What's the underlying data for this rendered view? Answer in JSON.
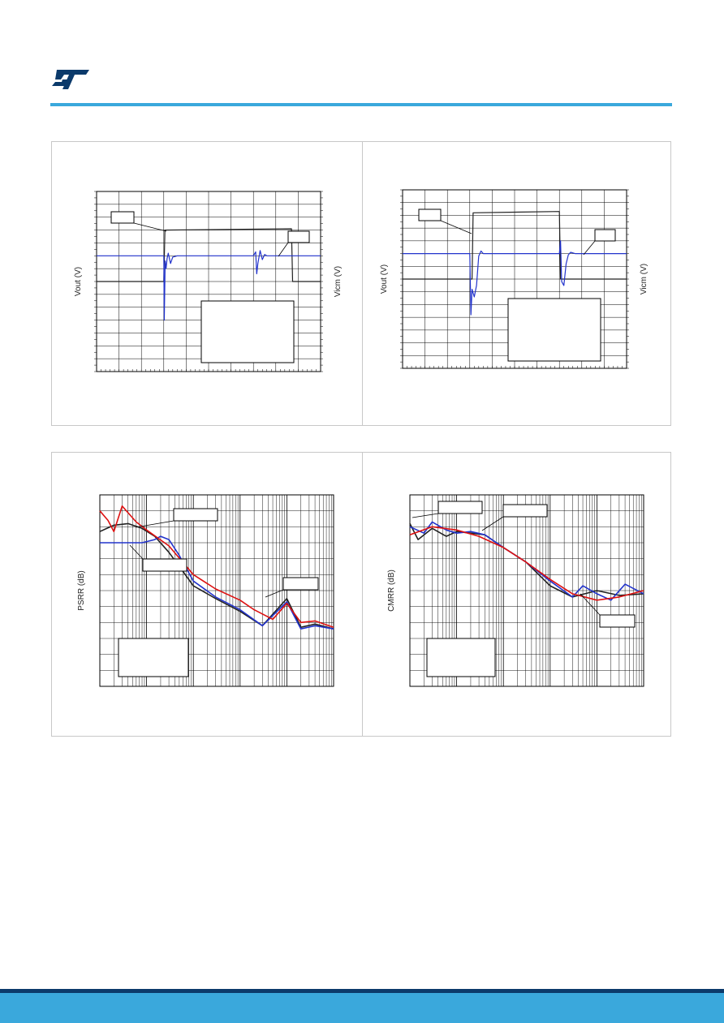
{
  "colors": {
    "brand": "#3aa8dc",
    "footer_dark": "#0b3a6b",
    "panel_border": "#c8c8c8"
  },
  "logo": {
    "icon": "st-logo-icon"
  },
  "chart_data": [
    {
      "id": "c1",
      "type": "line",
      "ylabel": "Vout (V)",
      "y2label": "Vicm (V)",
      "grid": true,
      "xlim": [
        0,
        10
      ],
      "ylim": [
        0,
        14
      ],
      "series": [
        {
          "color": "#222222",
          "x": [
            0,
            3.0,
            3.05,
            8.7,
            8.75,
            10
          ],
          "y": [
            7.0,
            7.0,
            11.0,
            11.1,
            7.0,
            7.0
          ]
        },
        {
          "color": "#2233cc",
          "x": [
            0,
            3.0,
            3.02,
            3.06,
            3.1,
            3.15,
            3.2,
            3.3,
            3.4,
            3.6,
            4.0,
            7.0,
            7.1,
            7.15,
            7.2,
            7.3,
            7.4,
            7.5,
            7.6,
            8.0,
            10
          ],
          "y": [
            9.0,
            9.0,
            4.0,
            8.6,
            8.0,
            8.8,
            9.2,
            8.4,
            8.9,
            9.0,
            9.0,
            9.0,
            9.3,
            7.6,
            8.4,
            9.4,
            8.7,
            9.1,
            9.0,
            9.0,
            9.0
          ]
        }
      ]
    },
    {
      "id": "c2",
      "type": "line",
      "ylabel": "Vout (V)",
      "y2label": "Vicm (V)",
      "grid": true,
      "xlim": [
        0,
        10
      ],
      "ylim": [
        0,
        14
      ],
      "series": [
        {
          "color": "#222222",
          "x": [
            0,
            3.1,
            3.15,
            7.0,
            7.05,
            10
          ],
          "y": [
            7.0,
            7.0,
            12.2,
            12.3,
            7.0,
            7.0
          ]
        },
        {
          "color": "#2233cc",
          "x": [
            0,
            3.0,
            3.05,
            3.1,
            3.2,
            3.3,
            3.4,
            3.5,
            3.6,
            3.7,
            3.9,
            4.2,
            7.0,
            7.05,
            7.1,
            7.2,
            7.3,
            7.4,
            7.5,
            7.7,
            8.0,
            10
          ],
          "y": [
            9.0,
            9.0,
            4.2,
            6.2,
            5.6,
            6.5,
            8.8,
            9.2,
            9.0,
            9.0,
            9.0,
            9.0,
            9.0,
            10.0,
            6.8,
            6.5,
            8.2,
            8.9,
            9.1,
            9.0,
            9.0,
            9.0
          ]
        }
      ]
    },
    {
      "id": "c3",
      "type": "line",
      "ylabel": "PSRR (dB)",
      "grid": true,
      "x_scale": "log",
      "xlim": [
        10,
        1000000
      ],
      "ylim": [
        0,
        120
      ],
      "series": [
        {
          "color": "#222222",
          "x": [
            10,
            20,
            40,
            80,
            150,
            300,
            600,
            1000,
            3000,
            10000,
            30000,
            100000,
            200000,
            400000,
            1000000
          ],
          "y": [
            97,
            101,
            102,
            99,
            94,
            84,
            72,
            63,
            55,
            47,
            38,
            55,
            37,
            39,
            36
          ]
        },
        {
          "color": "#2233cc",
          "x": [
            10,
            30,
            80,
            150,
            200,
            300,
            500,
            1000,
            3000,
            10000,
            30000,
            100000,
            200000,
            400000,
            1000000
          ],
          "y": [
            90,
            90,
            90,
            92,
            94,
            92,
            82,
            66,
            56,
            48,
            38,
            53,
            36,
            38,
            36
          ]
        },
        {
          "color": "#dd1111",
          "x": [
            10,
            15,
            20,
            30,
            60,
            100,
            300,
            1000,
            3000,
            10000,
            20000,
            50000,
            100000,
            200000,
            400000,
            1000000
          ],
          "y": [
            110,
            104,
            97,
            113,
            103,
            98,
            88,
            70,
            61,
            54,
            48,
            42,
            52,
            40,
            41,
            37
          ]
        }
      ]
    },
    {
      "id": "c4",
      "type": "line",
      "ylabel": "CMRR (dB)",
      "grid": true,
      "x_scale": "log",
      "xlim": [
        10,
        1000000
      ],
      "ylim": [
        0,
        120
      ],
      "series": [
        {
          "color": "#222222",
          "x": [
            10,
            15,
            30,
            60,
            100,
            200,
            400,
            1000,
            3000,
            10000,
            30000,
            100000,
            300000,
            1000000
          ],
          "y": [
            102,
            92,
            99,
            94,
            97,
            96,
            95,
            87,
            78,
            63,
            56,
            60,
            57,
            58
          ]
        },
        {
          "color": "#2233cc",
          "x": [
            10,
            20,
            30,
            60,
            100,
            200,
            400,
            1000,
            3000,
            10000,
            30000,
            50000,
            100000,
            200000,
            400000,
            1000000
          ],
          "y": [
            100,
            96,
            103,
            98,
            96,
            97,
            95,
            87,
            78,
            66,
            56,
            63,
            58,
            54,
            64,
            58
          ]
        },
        {
          "color": "#dd1111",
          "x": [
            10,
            30,
            100,
            300,
            1000,
            3000,
            10000,
            30000,
            100000,
            300000,
            1000000
          ],
          "y": [
            95,
            100,
            98,
            94,
            87,
            78,
            67,
            58,
            54,
            56,
            60
          ]
        }
      ]
    }
  ]
}
